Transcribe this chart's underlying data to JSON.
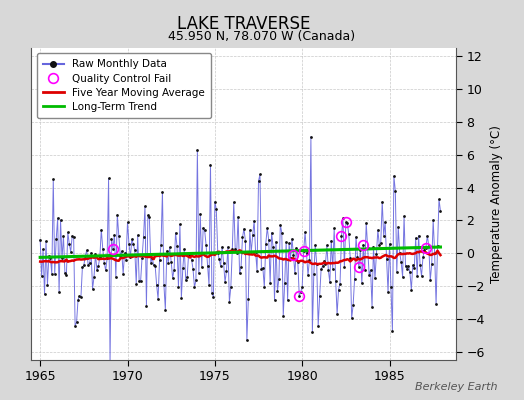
{
  "title": "LAKE TRAVERSE",
  "subtitle": "45.950 N, 78.070 W (Canada)",
  "ylabel": "Temperature Anomaly (°C)",
  "watermark": "Berkeley Earth",
  "xlim": [
    1964.5,
    1988.8
  ],
  "ylim": [
    -6.5,
    12.5
  ],
  "yticks": [
    -6,
    -4,
    -2,
    0,
    2,
    4,
    6,
    8,
    10,
    12
  ],
  "xticks": [
    1965,
    1970,
    1975,
    1980,
    1985
  ],
  "bg_color": "#d8d8d8",
  "plot_bg_color": "#ffffff",
  "raw_color": "#6666dd",
  "dot_color": "#111111",
  "ma_color": "#dd0000",
  "trend_color": "#00bb00",
  "qc_color": "#ff00ff",
  "seed": 12,
  "n_years": 23,
  "start_year": 1965
}
